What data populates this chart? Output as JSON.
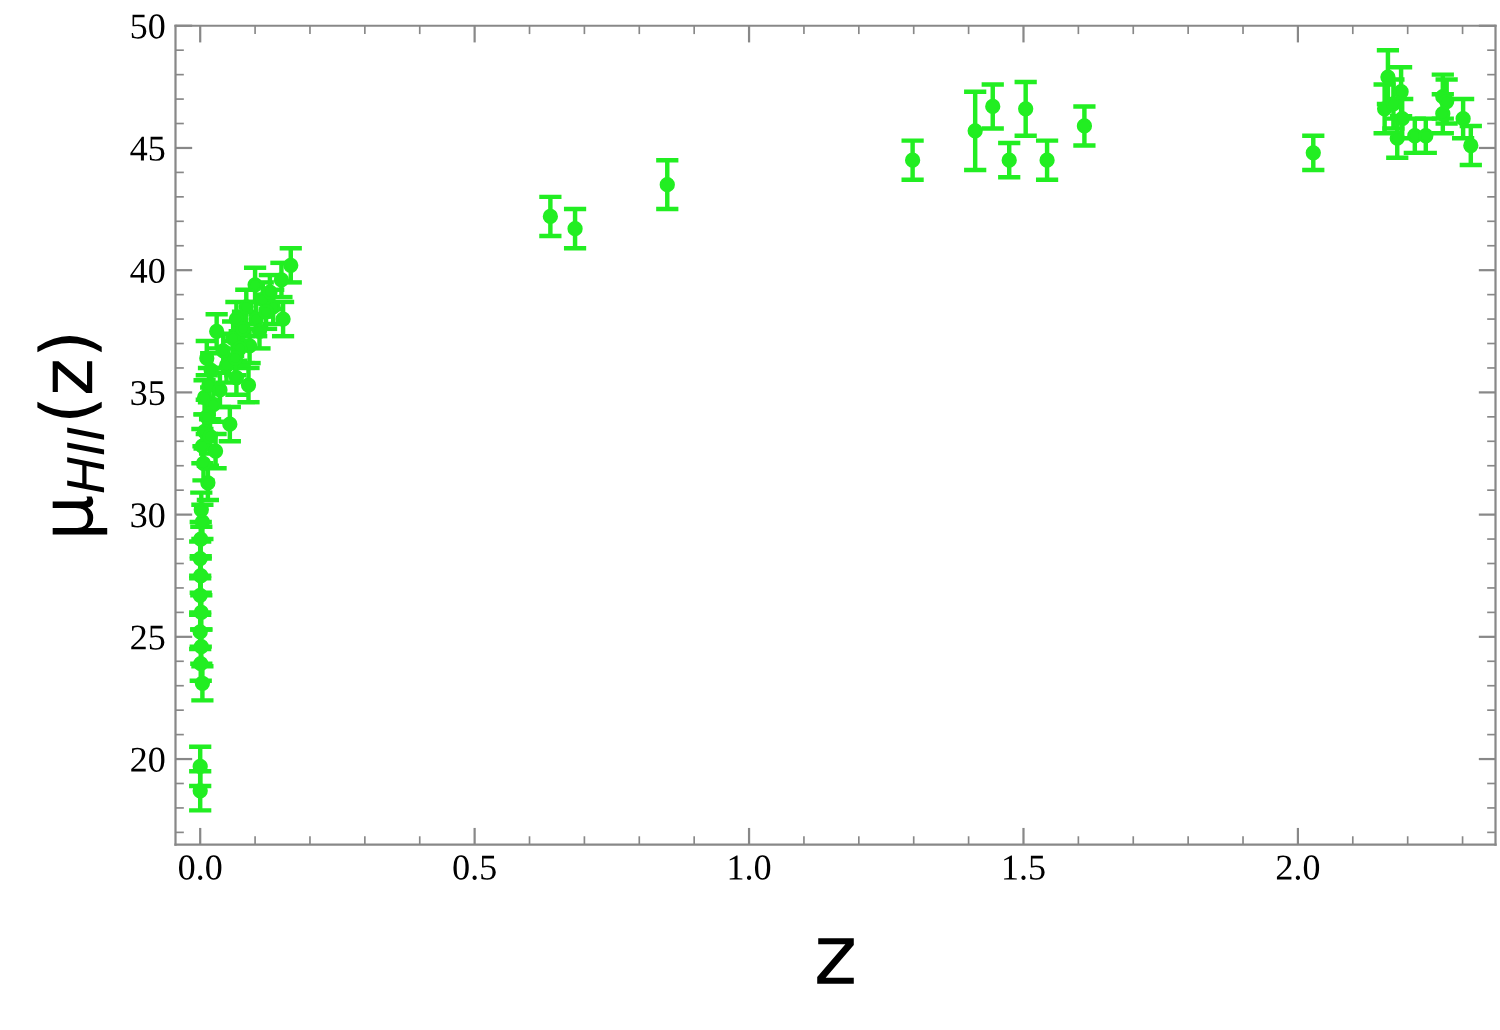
{
  "chart_data": {
    "type": "scatter",
    "xlabel": "z",
    "ylabel": "μ$_{HII}$(z)",
    "xlim": [
      -0.045,
      2.36
    ],
    "ylim": [
      16.5,
      50
    ],
    "xticks": [
      {
        "value": 0,
        "label": "0.0"
      },
      {
        "value": 0.5,
        "label": "0.5"
      },
      {
        "value": 1,
        "label": "1.0"
      },
      {
        "value": 1.5,
        "label": "1.5"
      },
      {
        "value": 2,
        "label": "2.0"
      }
    ],
    "yticks": [
      20,
      25,
      30,
      35,
      40,
      45,
      50
    ],
    "grid": false,
    "marker": "circle",
    "series": [
      {
        "color": "#22ee22",
        "x": [
          0.0,
          0.0,
          0.004,
          0.001,
          0.002,
          0.0,
          0.002,
          0.0,
          0.001,
          0.0,
          0.001,
          0.004,
          0.002,
          0.014,
          0.006,
          0.004,
          0.008,
          0.012,
          0.008,
          0.016,
          0.02,
          0.012,
          0.036,
          0.054,
          0.028,
          0.066,
          0.042,
          0.03,
          0.066,
          0.09,
          0.088,
          0.102,
          0.084,
          0.114,
          0.1,
          0.133,
          0.151,
          0.165,
          0.148,
          0.127,
          0.06,
          0.048,
          0.024,
          0.018,
          0.072,
          0.078,
          0.12,
          0.108,
          0.064,
          0.638,
          0.683,
          0.851,
          1.298,
          1.412,
          1.444,
          1.474,
          1.504,
          1.543,
          1.611,
          2.028,
          2.158,
          2.164,
          2.174,
          2.181,
          2.188,
          2.19,
          2.213,
          2.233,
          2.264,
          2.264,
          2.271,
          2.301,
          2.315
        ],
        "values": [
          18.7,
          19.7,
          23.1,
          23.9,
          24.6,
          25.2,
          26.0,
          26.7,
          27.5,
          28.2,
          29.0,
          29.7,
          30.2,
          31.3,
          32.1,
          32.8,
          33.4,
          34.0,
          34.8,
          35.3,
          35.9,
          36.4,
          35.1,
          33.7,
          32.6,
          35.6,
          36.7,
          37.5,
          38.0,
          36.9,
          35.3,
          38.0,
          38.5,
          38.8,
          39.4,
          38.5,
          38.0,
          40.2,
          39.6,
          39.1,
          37.2,
          36.1,
          34.5,
          33.2,
          36.8,
          37.6,
          38.3,
          37.5,
          36.4,
          42.2,
          41.7,
          43.5,
          44.5,
          45.7,
          46.7,
          44.5,
          46.6,
          44.5,
          45.9,
          44.8,
          46.6,
          47.9,
          46.8,
          45.4,
          47.3,
          46.2,
          45.5,
          45.5,
          47.1,
          46.4,
          46.9,
          46.2,
          45.1
        ],
        "errors": [
          0.8,
          0.8,
          0.7,
          0.7,
          0.7,
          0.7,
          0.7,
          0.7,
          0.7,
          0.7,
          0.7,
          0.7,
          0.7,
          0.7,
          0.7,
          0.7,
          0.7,
          0.7,
          0.7,
          0.7,
          0.7,
          0.7,
          0.7,
          0.7,
          0.7,
          0.7,
          0.7,
          0.7,
          0.7,
          0.7,
          0.7,
          0.7,
          0.7,
          0.7,
          0.7,
          0.7,
          0.7,
          0.7,
          0.7,
          0.7,
          0.7,
          0.7,
          0.7,
          0.7,
          0.7,
          0.7,
          0.7,
          0.7,
          0.7,
          0.8,
          0.8,
          1.0,
          0.8,
          1.6,
          0.9,
          0.7,
          1.1,
          0.8,
          0.8,
          0.7,
          1.0,
          1.1,
          1.0,
          0.8,
          1.0,
          0.8,
          0.7,
          0.7,
          0.9,
          0.8,
          0.9,
          0.8,
          0.8
        ]
      }
    ]
  }
}
